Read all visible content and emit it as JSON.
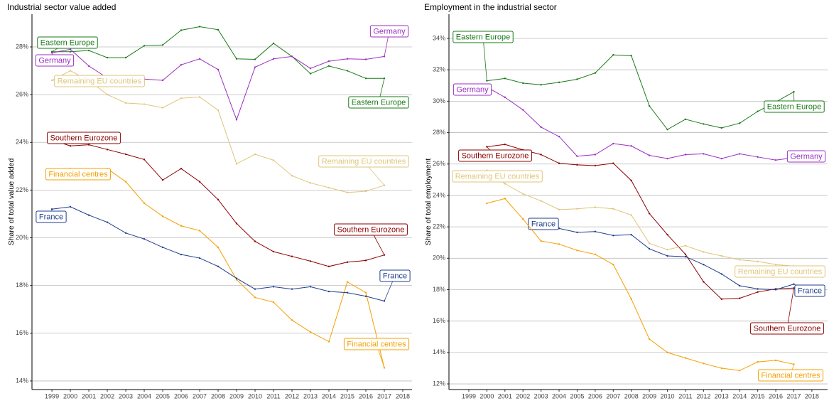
{
  "chart_data": [
    {
      "type": "line",
      "title": "Industrial sector value added",
      "y_label": "Share of total value added",
      "x": [
        1999,
        2000,
        2001,
        2002,
        2003,
        2004,
        2005,
        2006,
        2007,
        2008,
        2009,
        2010,
        2011,
        2012,
        2013,
        2014,
        2015,
        2016,
        2017
      ],
      "xlim": [
        1997.92,
        2018.5
      ],
      "xticks": [
        1999,
        2000,
        2001,
        2002,
        2003,
        2004,
        2005,
        2006,
        2007,
        2008,
        2009,
        2010,
        2011,
        2012,
        2013,
        2014,
        2015,
        2016,
        2017,
        2018
      ],
      "ylim": [
        13.64,
        29.37
      ],
      "yticks": [
        {
          "value": 14,
          "label": "14%"
        },
        {
          "value": 16,
          "label": "16%"
        },
        {
          "value": 18,
          "label": "18%"
        },
        {
          "value": 20,
          "label": "20%"
        },
        {
          "value": 22,
          "label": "22%"
        },
        {
          "value": 24,
          "label": "24%"
        },
        {
          "value": 26,
          "label": "26%"
        },
        {
          "value": 28,
          "label": "28%"
        }
      ],
      "grid": true,
      "series": [
        {
          "name": "Eastern Europe",
          "color": "#1a7a1a",
          "values": [
            27.8,
            27.8,
            27.85,
            27.55,
            27.55,
            28.05,
            28.08,
            28.7,
            28.85,
            28.72,
            27.5,
            27.48,
            28.15,
            27.6,
            26.88,
            27.2,
            27.0,
            26.68,
            26.68
          ]
        },
        {
          "name": "Germany",
          "color": "#9b2fc2",
          "values": [
            27.75,
            27.9,
            27.2,
            26.7,
            26.65,
            26.65,
            26.6,
            27.25,
            27.5,
            27.05,
            24.95,
            27.15,
            27.5,
            27.6,
            27.1,
            27.4,
            27.5,
            27.48,
            27.6
          ]
        },
        {
          "name": "Remaining EU countries",
          "color": "#dfc57a",
          "values": [
            26.6,
            27.0,
            26.6,
            26.0,
            25.65,
            25.6,
            25.45,
            25.85,
            25.9,
            25.35,
            23.1,
            23.5,
            23.25,
            22.6,
            22.3,
            22.1,
            21.9,
            21.95,
            22.2
          ]
        },
        {
          "name": "Southern Eurozone",
          "color": "#8b0000",
          "values": [
            24.1,
            23.85,
            23.9,
            23.7,
            23.5,
            23.28,
            22.42,
            22.9,
            22.35,
            21.6,
            20.6,
            19.85,
            19.42,
            19.22,
            19.02,
            18.8,
            18.98,
            19.05,
            19.28
          ]
        },
        {
          "name": "Financial centres",
          "color": "#f5a000",
          "values": [
            22.6,
            22.9,
            22.8,
            22.9,
            22.35,
            21.45,
            20.9,
            20.5,
            20.3,
            19.6,
            18.25,
            17.5,
            17.3,
            16.55,
            16.05,
            15.65,
            18.15,
            17.7,
            14.55
          ]
        },
        {
          "name": "France",
          "color": "#1f3d8c",
          "values": [
            21.2,
            21.3,
            20.95,
            20.65,
            20.2,
            19.95,
            19.6,
            19.3,
            19.15,
            18.8,
            18.3,
            17.85,
            17.95,
            17.85,
            17.95,
            17.75,
            17.7,
            17.55,
            17.35
          ]
        }
      ]
    },
    {
      "type": "line",
      "title": "Employment in the industrial sector",
      "y_label": "Share of total employment",
      "x": [
        1999,
        2000,
        2001,
        2002,
        2003,
        2004,
        2005,
        2006,
        2007,
        2008,
        2009,
        2010,
        2011,
        2012,
        2013,
        2014,
        2015,
        2016,
        2017
      ],
      "xlim": [
        1997.9,
        2018.87
      ],
      "xticks": [
        1999,
        2000,
        2001,
        2002,
        2003,
        2004,
        2005,
        2006,
        2007,
        2008,
        2009,
        2010,
        2011,
        2012,
        2013,
        2014,
        2015,
        2016,
        2017,
        2018
      ],
      "ylim": [
        11.64,
        35.54
      ],
      "yticks": [
        {
          "value": 12,
          "label": "12%"
        },
        {
          "value": 14,
          "label": "14%"
        },
        {
          "value": 16,
          "label": "16%"
        },
        {
          "value": 18,
          "label": "18%"
        },
        {
          "value": 20,
          "label": "20%"
        },
        {
          "value": 22,
          "label": "22%"
        },
        {
          "value": 24,
          "label": "24%"
        },
        {
          "value": 26,
          "label": "26%"
        },
        {
          "value": 28,
          "label": "28%"
        },
        {
          "value": 30,
          "label": "30%"
        },
        {
          "value": 32,
          "label": "32%"
        },
        {
          "value": 34,
          "label": "34%"
        }
      ],
      "grid": true,
      "series": [
        {
          "name": "Eastern Europe",
          "color": "#1a7a1a",
          "values": [
            null,
            31.3,
            31.45,
            31.15,
            31.05,
            31.2,
            31.4,
            31.8,
            32.95,
            32.9,
            29.7,
            28.2,
            28.85,
            28.55,
            28.3,
            28.6,
            29.35,
            29.95,
            30.6
          ]
        },
        {
          "name": "Germany",
          "color": "#9b2fc2",
          "values": [
            null,
            30.9,
            30.25,
            29.45,
            28.35,
            27.75,
            26.5,
            26.6,
            27.3,
            27.15,
            26.55,
            26.35,
            26.6,
            26.65,
            26.35,
            26.65,
            26.45,
            26.25,
            26.4
          ]
        },
        {
          "name": "Southern Eurozone",
          "color": "#8b0000",
          "values": [
            null,
            27.1,
            27.25,
            26.9,
            26.6,
            26.05,
            25.95,
            25.9,
            26.05,
            24.95,
            22.85,
            21.5,
            20.25,
            18.5,
            17.4,
            17.45,
            17.85,
            18.05,
            18.1
          ]
        },
        {
          "name": "Remaining EU countries",
          "color": "#dfc57a",
          "values": [
            null,
            25.6,
            24.75,
            24.1,
            23.65,
            23.1,
            23.15,
            23.25,
            23.15,
            22.75,
            20.95,
            20.55,
            20.8,
            20.4,
            20.15,
            19.9,
            19.8,
            19.6,
            19.5
          ]
        },
        {
          "name": "France",
          "color": "#1f3d8c",
          "values": [
            null,
            null,
            null,
            null,
            22.35,
            21.9,
            21.65,
            21.7,
            21.45,
            21.5,
            20.6,
            20.15,
            20.1,
            19.6,
            19.0,
            18.25,
            18.05,
            18.0,
            18.35
          ]
        },
        {
          "name": "Financial centres",
          "color": "#f5a000",
          "values": [
            null,
            23.5,
            23.8,
            22.5,
            21.1,
            20.9,
            20.5,
            20.25,
            19.6,
            17.4,
            14.85,
            14.0,
            13.65,
            13.3,
            13.0,
            12.85,
            13.4,
            13.5,
            13.25
          ]
        }
      ]
    }
  ]
}
